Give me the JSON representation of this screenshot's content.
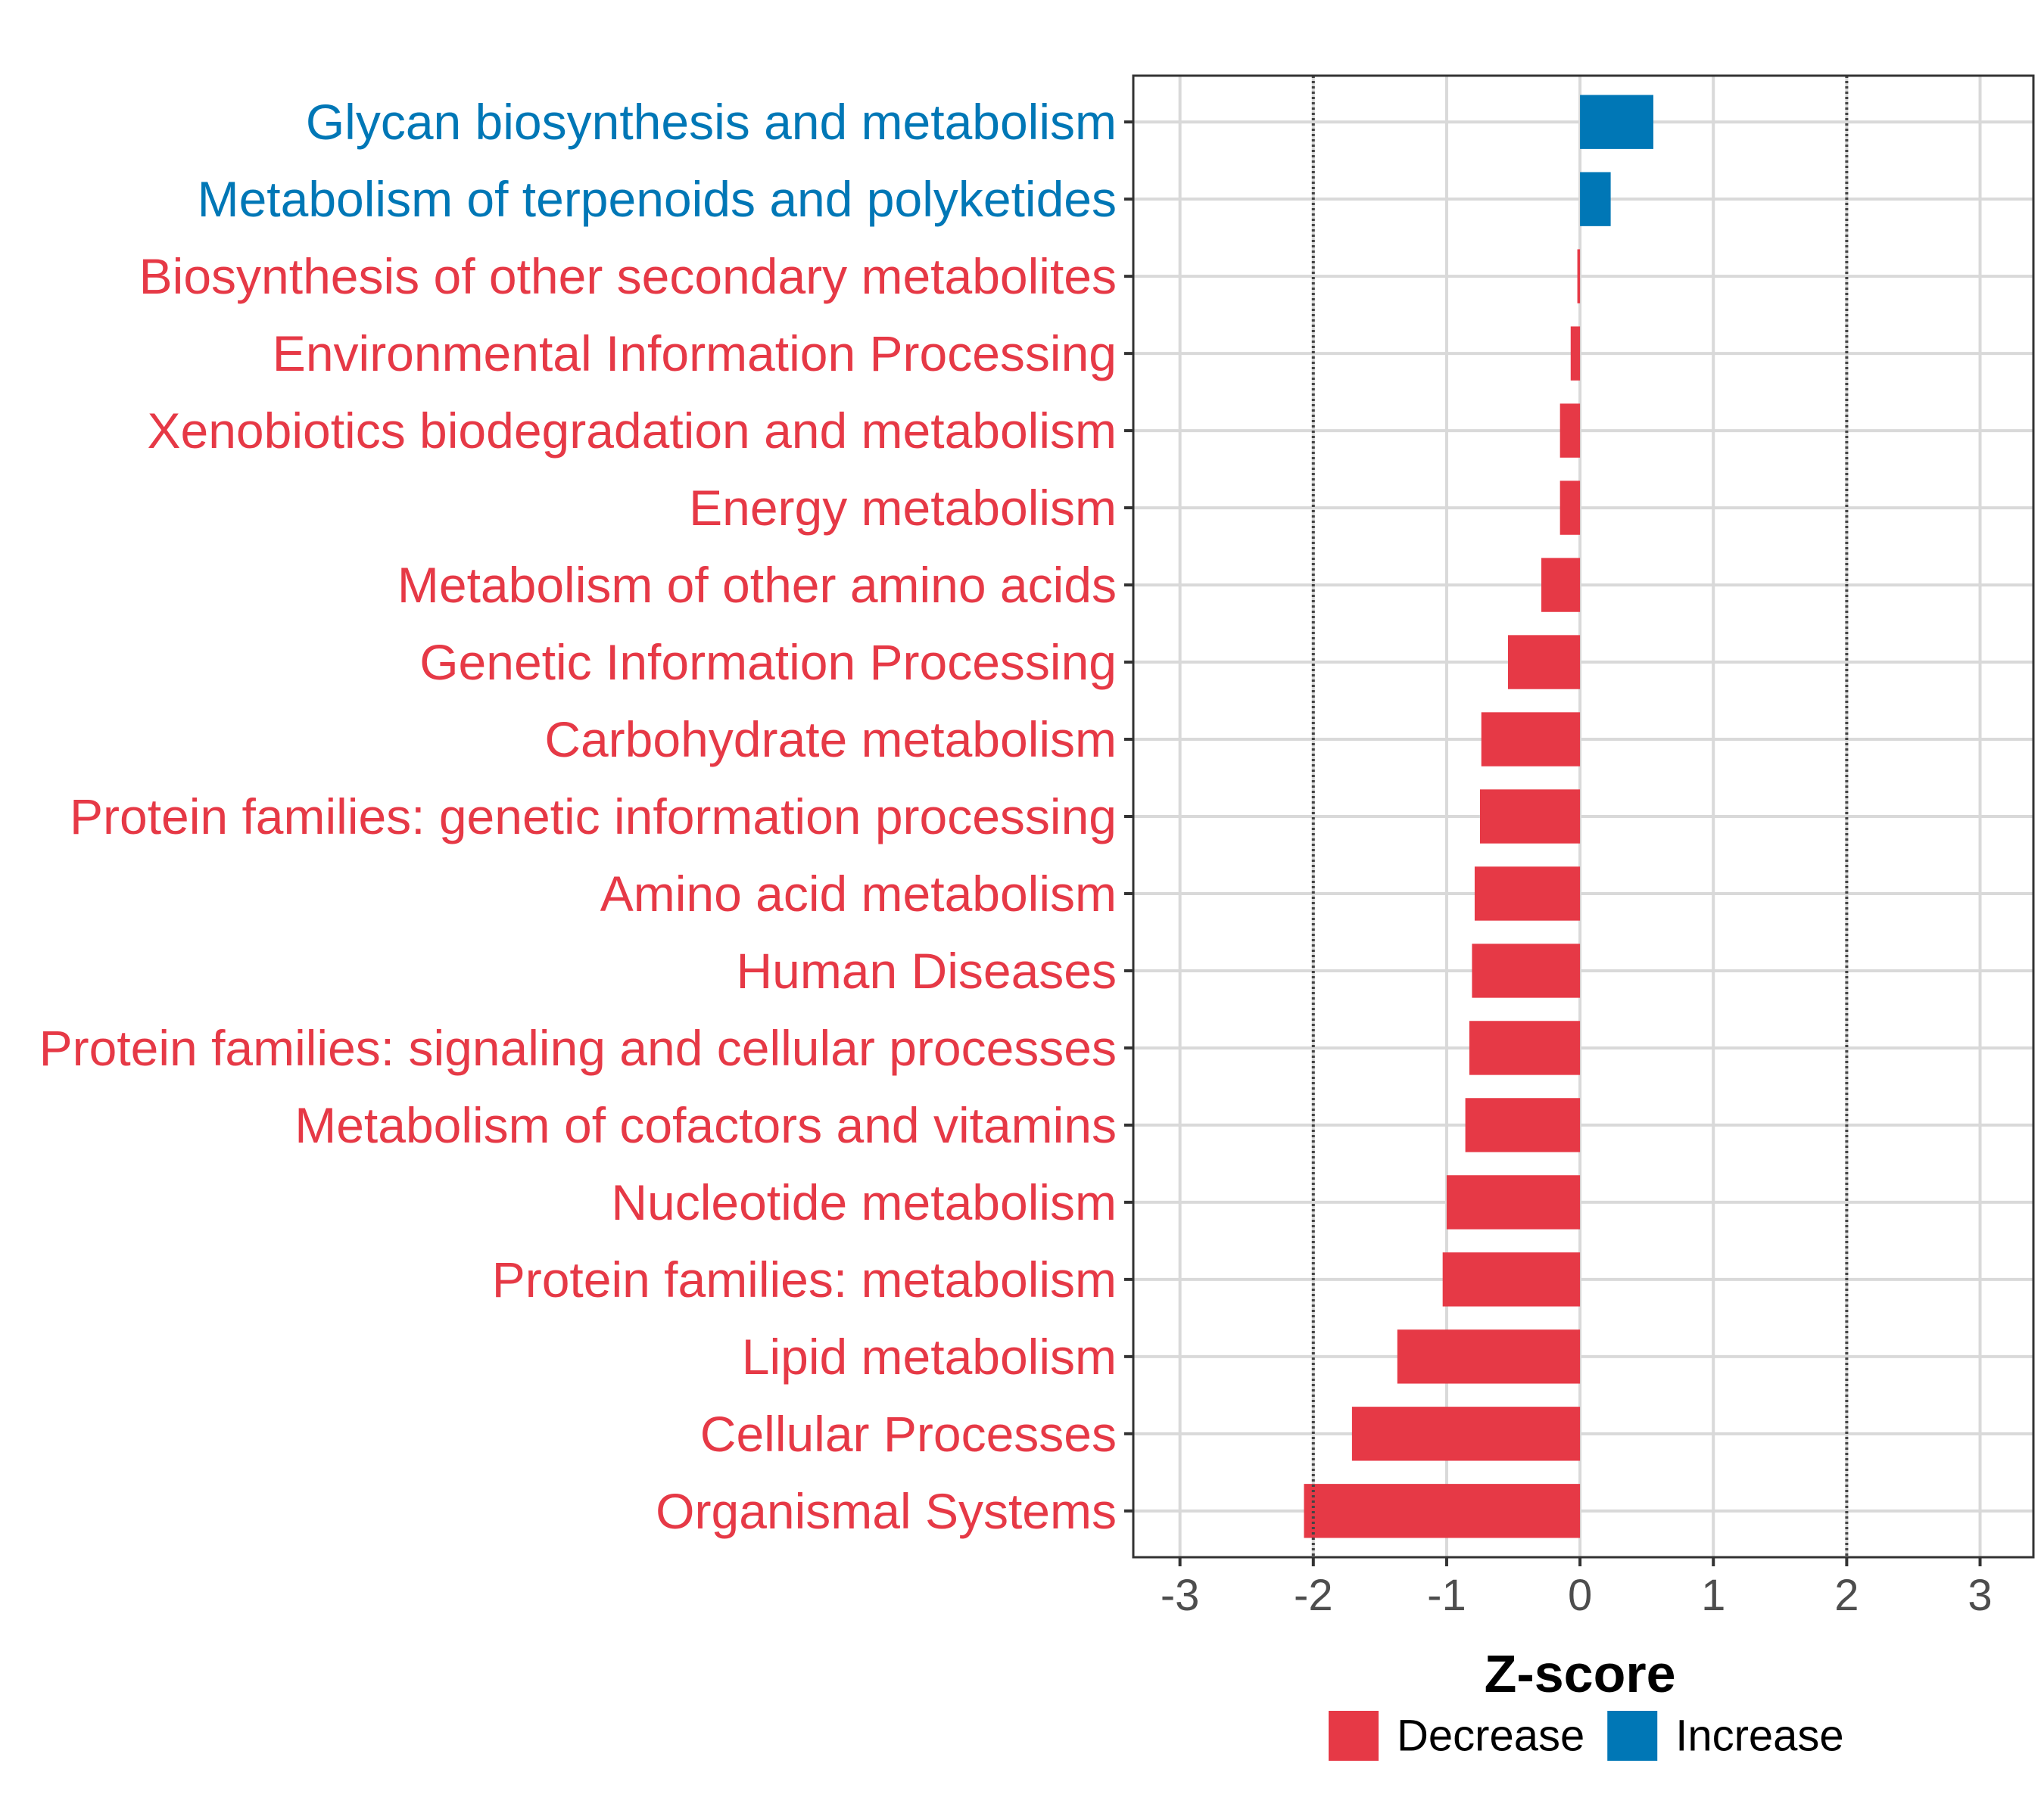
{
  "chart_data": {
    "type": "bar",
    "orientation": "horizontal",
    "title": "",
    "xlabel": "Z-score",
    "ylabel": "",
    "xlim": [
      -3.35,
      3.4
    ],
    "x_ticks": [
      -3,
      -2,
      -1,
      0,
      1,
      2,
      3
    ],
    "threshold_lines": [
      -2,
      2
    ],
    "grid": true,
    "legend_position": "bottom",
    "categories": [
      "Glycan biosynthesis and metabolism",
      "Metabolism of terpenoids and polyketides",
      "Biosynthesis of other secondary metabolites",
      "Environmental Information Processing",
      "Xenobiotics biodegradation and metabolism",
      "Energy metabolism",
      "Metabolism of other amino acids",
      "Genetic Information Processing",
      "Carbohydrate metabolism",
      "Protein families: genetic information processing",
      "Amino acid metabolism",
      "Human Diseases",
      "Protein families: signaling and cellular processes",
      "Metabolism of cofactors and vitamins",
      "Nucleotide metabolism",
      "Protein families: metabolism",
      "Lipid metabolism",
      "Cellular Processes",
      "Organismal Systems"
    ],
    "values": [
      0.55,
      0.23,
      -0.02,
      -0.07,
      -0.15,
      -0.15,
      -0.29,
      -0.54,
      -0.74,
      -0.75,
      -0.79,
      -0.81,
      -0.83,
      -0.86,
      -1.0,
      -1.03,
      -1.37,
      -1.71,
      -2.07
    ],
    "groups": [
      "Increase",
      "Increase",
      "Decrease",
      "Decrease",
      "Decrease",
      "Decrease",
      "Decrease",
      "Decrease",
      "Decrease",
      "Decrease",
      "Decrease",
      "Decrease",
      "Decrease",
      "Decrease",
      "Decrease",
      "Decrease",
      "Decrease",
      "Decrease",
      "Decrease"
    ],
    "legend": [
      {
        "name": "Decrease",
        "color": "#E63946"
      },
      {
        "name": "Increase",
        "color": "#0077B6"
      }
    ]
  }
}
